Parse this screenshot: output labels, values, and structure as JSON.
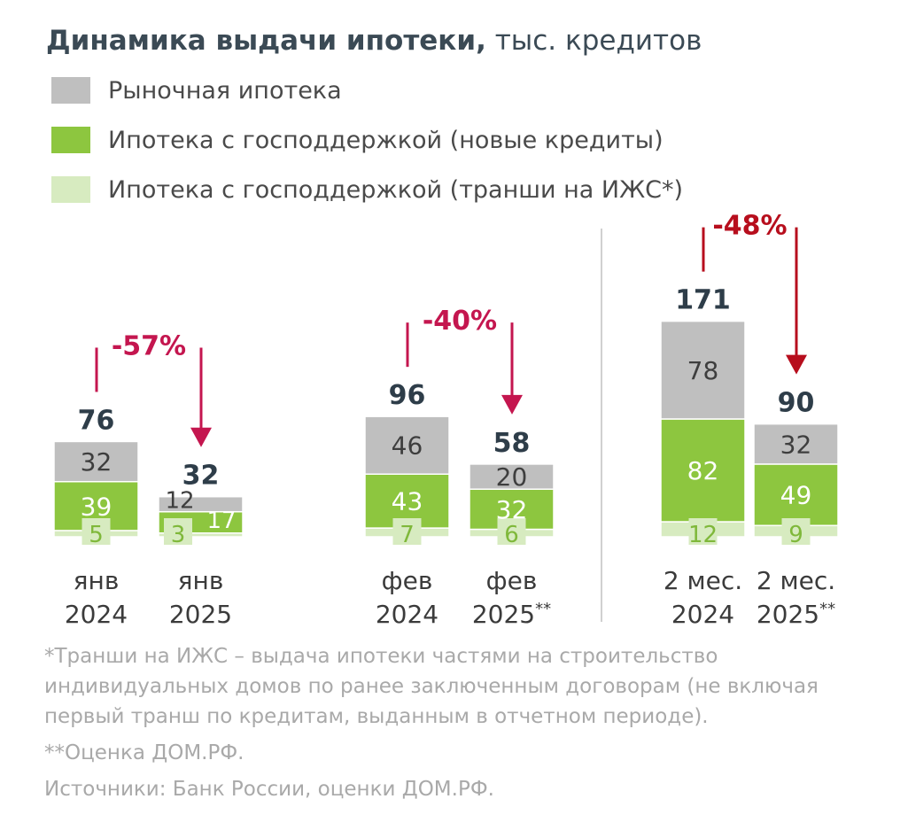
{
  "title": {
    "bold": "Динамика выдачи ипотеки,",
    "rest": " тыс. кредитов"
  },
  "colors": {
    "market": "#bfbfbf",
    "gov_new": "#8dc63f",
    "gov_tranches": "#d7ebc0",
    "total_label": "#2e3d49",
    "change_arrow_pink": "#c4164f",
    "change_arrow_red": "#b70e1d",
    "separator": "#d0d0d0"
  },
  "legend": [
    {
      "label": "Рыночная ипотека",
      "color_key": "market"
    },
    {
      "label": "Ипотека с господдержкой (новые кредиты)",
      "color_key": "gov_new"
    },
    {
      "label": "Ипотека с господдержкой (транши на ИЖС*)",
      "color_key": "gov_tranches"
    }
  ],
  "chart_data": {
    "type": "bar",
    "stacked": true,
    "unit": "тыс. кредитов",
    "groups": [
      {
        "change": "-57%",
        "change_color_key": "change_arrow_pink",
        "bars": [
          {
            "label_line1": "янв",
            "label_line2": "2024",
            "label_suffix": "",
            "total": 76,
            "tranches": 5,
            "gov_new": 39,
            "market": 32
          },
          {
            "label_line1": "янв",
            "label_line2": "2025",
            "label_suffix": "",
            "total": 32,
            "tranches": 3,
            "gov_new": 17,
            "market": 12
          }
        ]
      },
      {
        "change": "-40%",
        "change_color_key": "change_arrow_pink",
        "bars": [
          {
            "label_line1": "фев",
            "label_line2": "2024",
            "label_suffix": "",
            "total": 96,
            "tranches": 7,
            "gov_new": 43,
            "market": 46
          },
          {
            "label_line1": "фев",
            "label_line2": "2025",
            "label_suffix": "**",
            "total": 58,
            "tranches": 6,
            "gov_new": 32,
            "market": 20
          }
        ]
      },
      {
        "change": "-48%",
        "change_color_key": "change_arrow_red",
        "bars": [
          {
            "label_line1": "2 мес.",
            "label_line2": "2024",
            "label_suffix": "",
            "total": 171,
            "tranches": 12,
            "gov_new": 82,
            "market": 78
          },
          {
            "label_line1": "2 мес.",
            "label_line2": "2025",
            "label_suffix": "**",
            "total": 90,
            "tranches": 9,
            "gov_new": 49,
            "market": 32
          }
        ]
      }
    ]
  },
  "footnotes": {
    "tranches_note": "*Транши на ИЖС – выдача ипотеки частями на строительство индивидуальных домов по ранее заключенным договорам (не включая первый транш по кредитам, выданным в отчетном периоде).",
    "estimate_note": "**Оценка ДОМ.РФ.",
    "sources": "Источники: Банк России, оценки ДОМ.РФ."
  }
}
